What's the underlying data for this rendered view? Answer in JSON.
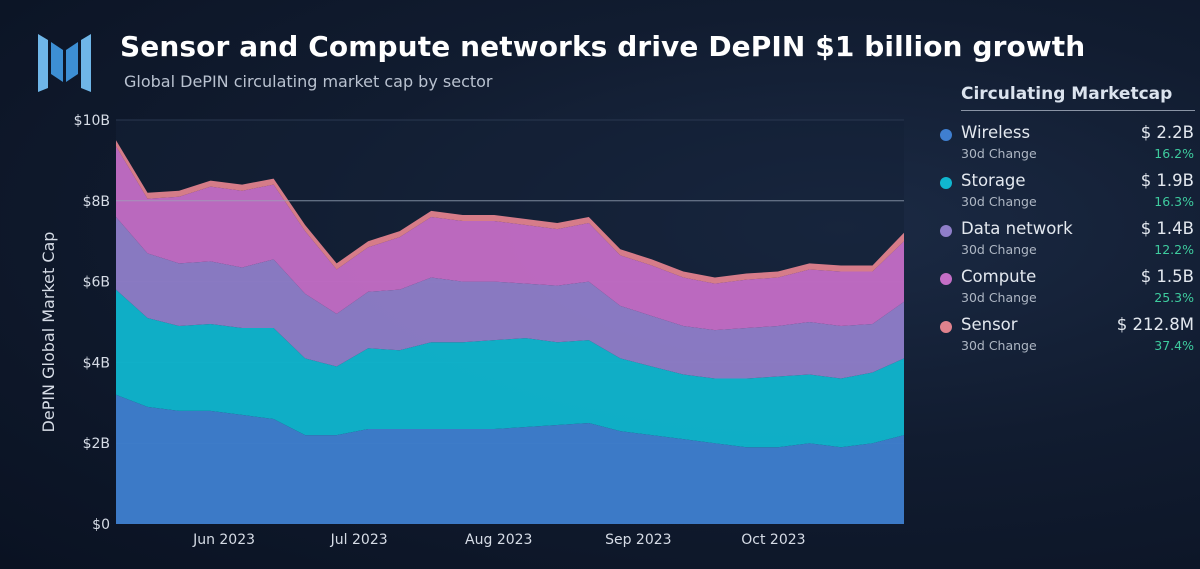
{
  "header": {
    "title": "Sensor and Compute networks drive DePIN $1 billion growth",
    "subtitle": "Global DePIN circulating market cap by sector",
    "logo_icon": "messari-logo-icon"
  },
  "legend": {
    "title": "Circulating Marketcap",
    "change_label": "30d Change",
    "items": [
      {
        "name": "Wireless",
        "value": "$ 2.2B",
        "change": "16.2%",
        "color": "#3f7fd0"
      },
      {
        "name": "Storage",
        "value": "$ 1.9B",
        "change": "16.3%",
        "color": "#10b6cf"
      },
      {
        "name": "Data network",
        "value": "$ 1.4B",
        "change": "12.2%",
        "color": "#8f7ec9"
      },
      {
        "name": "Compute",
        "value": "$ 1.5B",
        "change": "25.3%",
        "color": "#c46ec6"
      },
      {
        "name": "Sensor",
        "value": "$ 212.8M",
        "change": "37.4%",
        "color": "#e0828d"
      }
    ]
  },
  "chart_data": {
    "type": "area",
    "stacked": true,
    "ylabel": "DePIN Global Market Cap",
    "ylim": [
      0,
      10
    ],
    "yticks": [
      0,
      2,
      4,
      6,
      8,
      10
    ],
    "ytick_labels": [
      "$0",
      "$2B",
      "$4B",
      "$6B",
      "$8B",
      "$10B"
    ],
    "x_range": [
      "2023-05-08",
      "2023-10-30"
    ],
    "xticks": [
      "2023-06-01",
      "2023-07-01",
      "2023-08-01",
      "2023-09-01",
      "2023-10-01"
    ],
    "xtick_labels": [
      "Jun 2023",
      "Jul 2023",
      "Aug 2023",
      "Sep 2023",
      "Oct 2023"
    ],
    "reference_line_y": 8,
    "x": [
      "2023-05-08",
      "2023-05-15",
      "2023-05-22",
      "2023-05-29",
      "2023-06-05",
      "2023-06-12",
      "2023-06-19",
      "2023-06-26",
      "2023-07-03",
      "2023-07-10",
      "2023-07-17",
      "2023-07-24",
      "2023-07-31",
      "2023-08-07",
      "2023-08-14",
      "2023-08-21",
      "2023-08-28",
      "2023-09-04",
      "2023-09-11",
      "2023-09-18",
      "2023-09-25",
      "2023-10-02",
      "2023-10-09",
      "2023-10-16",
      "2023-10-23",
      "2023-10-30"
    ],
    "series": [
      {
        "name": "Wireless",
        "color": "#3f7fd0",
        "values": [
          3.2,
          2.9,
          2.8,
          2.8,
          2.7,
          2.6,
          2.2,
          2.2,
          2.35,
          2.35,
          2.35,
          2.35,
          2.35,
          2.4,
          2.45,
          2.5,
          2.3,
          2.2,
          2.1,
          2.0,
          1.9,
          1.9,
          2.0,
          1.9,
          2.0,
          2.2
        ]
      },
      {
        "name": "Storage",
        "color": "#10b6cf",
        "values": [
          2.6,
          2.2,
          2.1,
          2.15,
          2.15,
          2.25,
          1.9,
          1.7,
          2.0,
          1.95,
          2.15,
          2.15,
          2.2,
          2.2,
          2.05,
          2.05,
          1.8,
          1.7,
          1.6,
          1.6,
          1.7,
          1.75,
          1.7,
          1.7,
          1.75,
          1.9
        ]
      },
      {
        "name": "Data network",
        "color": "#8f7ec9",
        "values": [
          1.8,
          1.6,
          1.55,
          1.55,
          1.5,
          1.7,
          1.6,
          1.3,
          1.4,
          1.5,
          1.6,
          1.5,
          1.45,
          1.35,
          1.4,
          1.45,
          1.3,
          1.25,
          1.2,
          1.2,
          1.25,
          1.25,
          1.3,
          1.3,
          1.2,
          1.4
        ]
      },
      {
        "name": "Compute",
        "color": "#c46ec6",
        "values": [
          1.75,
          1.35,
          1.65,
          1.85,
          1.9,
          1.85,
          1.55,
          1.1,
          1.1,
          1.3,
          1.5,
          1.5,
          1.5,
          1.45,
          1.4,
          1.45,
          1.25,
          1.25,
          1.2,
          1.15,
          1.2,
          1.2,
          1.3,
          1.35,
          1.3,
          1.5
        ]
      },
      {
        "name": "Sensor",
        "color": "#e0828d",
        "values": [
          0.15,
          0.15,
          0.15,
          0.15,
          0.15,
          0.15,
          0.15,
          0.15,
          0.15,
          0.15,
          0.15,
          0.15,
          0.15,
          0.15,
          0.15,
          0.15,
          0.15,
          0.15,
          0.15,
          0.15,
          0.15,
          0.15,
          0.15,
          0.15,
          0.15,
          0.21
        ]
      }
    ]
  }
}
